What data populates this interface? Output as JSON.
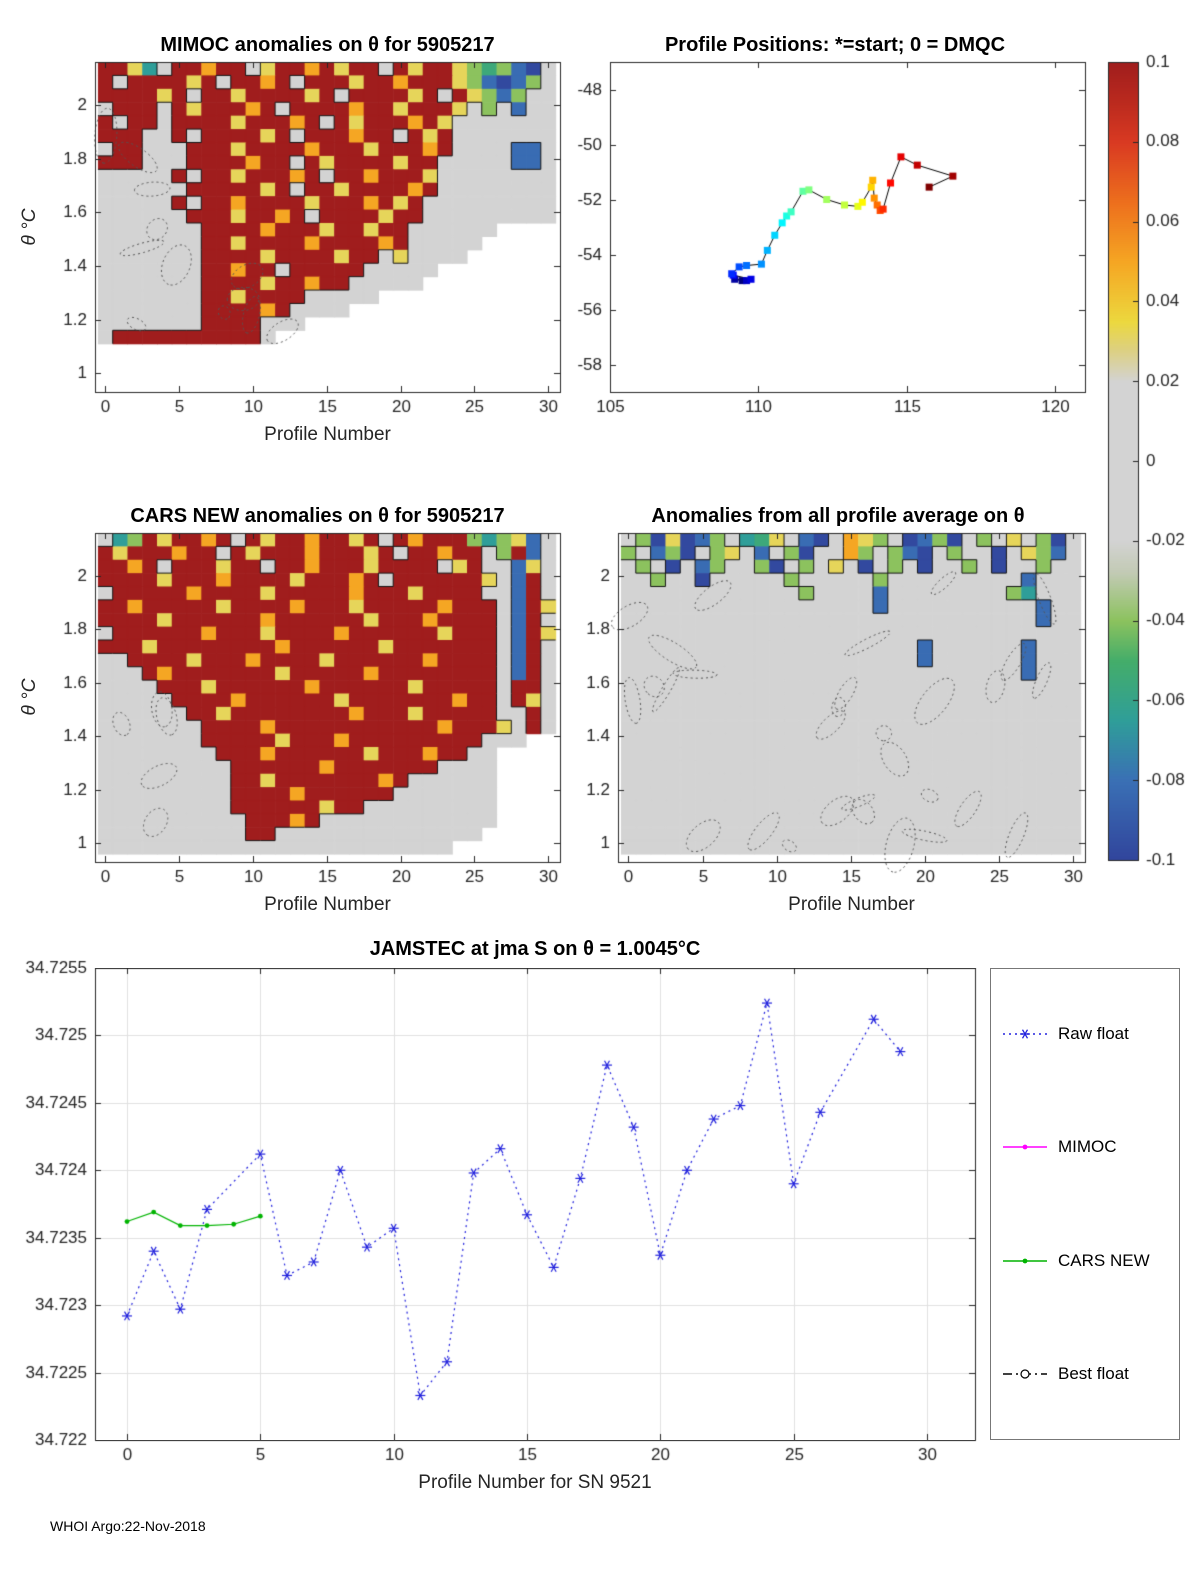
{
  "page": {
    "footer": "WHOI Argo:22-Nov-2018",
    "background": "#ffffff"
  },
  "colormap": {
    "range": [
      -0.1,
      0.1
    ],
    "ticks": [
      0.1,
      0.08,
      0.06,
      0.04,
      0.02,
      0,
      -0.02,
      -0.04,
      -0.06,
      -0.08,
      -0.1
    ],
    "stops": [
      [
        0.0,
        "#31459c"
      ],
      [
        0.1,
        "#3a70b5"
      ],
      [
        0.175,
        "#2f9e99"
      ],
      [
        0.25,
        "#44ad6a"
      ],
      [
        0.3,
        "#8cc25e"
      ],
      [
        0.36,
        "#c2cab4"
      ],
      [
        0.4,
        "#d3d3d3"
      ],
      [
        0.6,
        "#d3d3d3"
      ],
      [
        0.64,
        "#ddd080"
      ],
      [
        0.675,
        "#ecd83e"
      ],
      [
        0.75,
        "#f5a623"
      ],
      [
        0.825,
        "#ed6f1d"
      ],
      [
        0.9,
        "#d93a22"
      ],
      [
        0.95,
        "#bb2a1e"
      ],
      [
        1.0,
        "#a01d1d"
      ]
    ]
  },
  "chart_data": [
    {
      "id": "mimoc_heatmap",
      "type": "heatmap",
      "title": "MIMOC anomalies on θ  for 5905217",
      "xlabel": "Profile Number",
      "ylabel": "θ  °C",
      "xlim": [
        -0.7,
        30.8
      ],
      "ylim": [
        0.93,
        2.16
      ],
      "xticks": [
        0,
        5,
        10,
        15,
        20,
        25,
        30
      ],
      "yticks": [
        1,
        1.2,
        1.4,
        1.6,
        1.8,
        2
      ],
      "y_top": 2.16,
      "y_step": 0.05,
      "value_map": {
        " ": null,
        "0": 0,
        "y": 0.032,
        "o": 0.05,
        "r": 0.08,
        "R": 0.1,
        "g": -0.04,
        "G": -0.055,
        "c": -0.065,
        "b": -0.082,
        "B": -0.098
      },
      "grid": [
        "RRyc0RRoRR0yRRoRyRR0RyRRygGgbB0",
        "R0RRRRyR0RRoR0RRRyRRoRRRygbBbg0",
        "RRRRyR0RRyRRRRyR0RRRRyR0Rygbg00",
        "0RRR0RyRRRoR0RRRRoRRyRRRy0g0b00",
        "R0RR0RRRRyRRRoR0RyRRRoRy0000000",
        "RRR00R0RRRRyR0RRRoRR0RyR0000000",
        "0RR000RRRyRRRRoRRRyRRRoR0000bb0",
        "RRR000RRRRoRR0RyRRRRyRR00000bb0",
        "00000R0RRyRRRoR0RRoRRRy00000000",
        "000000RRRRRyR0RRyRRRRoR00000000",
        "00000R0RRoRRRRyRRRoRyR000000000",
        "000000RRRyRRoR0RRRRyRR000000000",
        "0000000RRRRoRRRyRRyRR000000",
        "0000000RRyRRRRoRRRRoR00000",
        "0000000RRRRyRRRRyRR0y0000",
        "0000000RRoRR0RRRRR00000",
        "0000000RRRRyRRoRR00000",
        "0000000RRyRRRR00000",
        "0000000RRRRoR0000",
        "0000000RRRR000",
        "0RRRRRRRRRR0",
        "",
        "",
        ""
      ]
    },
    {
      "id": "profile_positions",
      "type": "trajectory",
      "title": "Profile Positions: *=start; 0 = DMQC",
      "xlim": [
        105,
        121
      ],
      "ylim": [
        -59,
        -47
      ],
      "xticks": [
        105,
        110,
        115,
        120
      ],
      "yticks": [
        -58,
        -56,
        -54,
        -52,
        -50,
        -48
      ],
      "lon": [
        109.45,
        109.2,
        109.6,
        109.75,
        109.15,
        109.1,
        109.35,
        109.6,
        110.1,
        110.3,
        110.55,
        110.8,
        110.95,
        111.1,
        111.5,
        111.7,
        112.3,
        112.9,
        113.35,
        113.5,
        113.8,
        113.85,
        113.9,
        114.0,
        114.1,
        114.2,
        114.45,
        114.8,
        115.35,
        116.55,
        115.75
      ],
      "lat": [
        -54.95,
        -54.9,
        -54.95,
        -54.9,
        -54.75,
        -54.7,
        -54.45,
        -54.4,
        -54.35,
        -53.85,
        -53.3,
        -52.85,
        -52.6,
        -52.45,
        -51.7,
        -51.65,
        -52.0,
        -52.2,
        -52.25,
        -52.1,
        -51.55,
        -51.3,
        -51.95,
        -52.2,
        -52.4,
        -52.35,
        -51.4,
        -50.45,
        -50.75,
        -51.15,
        -51.55
      ]
    },
    {
      "id": "cars_heatmap",
      "type": "heatmap",
      "title": "CARS NEW anomalies on θ for 5905217",
      "xlabel": "Profile Number",
      "ylabel": "θ  °C",
      "xlim": [
        -0.7,
        30.8
      ],
      "ylim": [
        0.93,
        2.16
      ],
      "xticks": [
        0,
        5,
        10,
        15,
        20,
        25,
        30
      ],
      "yticks": [
        1,
        1.2,
        1.4,
        1.6,
        1.8,
        2
      ],
      "y_top": 2.16,
      "y_step": 0.05,
      "value_map": {
        " ": null,
        "0": 0,
        "y": 0.032,
        "o": 0.05,
        "r": 0.08,
        "R": 0.1,
        "g": -0.04,
        "G": -0.055,
        "c": -0.065,
        "b": -0.082,
        "B": -0.098
      },
      "grid": [
        "0cgRyRRoR0RyRRoRRyR0RoRRRgcgyb0",
        "RyRRRoRR0RyRRRoRRRyR0RRoRR0gRb0",
        "RRoR0RRRyRR0RRoRRRyRRRR0yR00by0",
        "RRRRyRRRoRRRRyRRRoR0RRRRRRy0bR0",
        "0RRRRRoRRRRyRRRRRoRRRyRRRR00bR0",
        "RRoRRRRRyRRRRoRRRyRRRRRoRRR0bRy",
        "RRRRyRRRRRRoRRRRRRyRRRoRRRR0bR0",
        "0RRRRRRoRRRyRRRRoRRRRRRyRRR0bRy",
        "RRRyRRRRRRRRoRRRRRRyRRRRRRR0bR0",
        "00RRRRyRRRoRRRRyRRRRRRoRRRR0bR0",
        "000RoRRRRRRRyRRRRRoRRRRRRRR0bR0",
        "0000RRRyRRRRRRoRRRRRRyRRRRR0RR0",
        "00000RRRRoRRRRRRyRRRRRRRoRR0Ry0",
        "000000RRyRRRRRRRRoRRRyRRRRR00R0",
        "0000000RRRRoRRRRRRRRRRRoRRRy0R0",
        "0000000RRRRRyRRRoRRRRRRRRR000",
        "00000000RRRoRRRRRRyRRRoRR00",
        "000000000RRRRRRoRRRRRRR0000",
        "000000000RRyRRRRRRRoR000000",
        "000000000RRRRoRRRRRR0000000",
        "000000000RRRRRRyRR000000000",
        "0000000000RRRoR000000000000",
        "0000000000RR00000000000000",
        "000000000000000000000000"
      ]
    },
    {
      "id": "avg_heatmap",
      "type": "heatmap",
      "title": "Anomalies from all profile average on θ",
      "xlabel": "Profile Number",
      "ylabel": "",
      "xlim": [
        -0.7,
        30.8
      ],
      "ylim": [
        0.93,
        2.16
      ],
      "xticks": [
        0,
        5,
        10,
        15,
        20,
        25,
        30
      ],
      "yticks": [
        1,
        1.2,
        1.4,
        1.6,
        1.8,
        2
      ],
      "y_top": 2.16,
      "y_step": 0.05,
      "value_map": {
        " ": null,
        "0": 0,
        "y": 0.032,
        "o": 0.05,
        "r": 0.08,
        "R": 0.1,
        "g": -0.04,
        "G": -0.055,
        "c": -0.065,
        "b": -0.082,
        "B": -0.098
      },
      "grid": [
        "0gByBbg0cGy0bB0oyg0BbgB0g0y0gB0",
        "g0bgB0gy0b0gB00og0gbB0g00B0ygb0",
        "0g0B0bg00gB0g0y0B0g0B00g0B00g00",
        "00g00B00000g00000g000000000b000",
        "000000000000g0000b00000000gc000",
        "00000000000000000b0000000000b00",
        "0000000000000000000000000000b00",
        "0000000000000000000000000000000",
        "00000000000000000000b000000b000",
        "00000000000000000000b000000b000",
        "000000000000000000000000000b000",
        "0000000000000000000000000000000",
        "0000000000000000000000000000000",
        "0000000000000000000000000000000",
        "0000000000000000000000000000000",
        "0000000000000000000000000000000",
        "0000000000000000000000000000000",
        "0000000000000000000000000000000",
        "0000000000000000000000000000000",
        "0000000000000000000000000000000",
        "0000000000000000000000000000000",
        "0000000000000000000000000000000",
        "0000000000000000000000000000000",
        "0000000000000000000000000000000"
      ]
    },
    {
      "id": "jamstec_salinity",
      "type": "line",
      "title": "JAMSTEC at jma S on θ = 1.0045°C",
      "xlabel": "Profile Number for SN 9521",
      "xlim": [
        -1.2,
        31.8
      ],
      "ylim": [
        34.722,
        34.7255
      ],
      "xticks": [
        0,
        5,
        10,
        15,
        20,
        25,
        30
      ],
      "yticks": [
        34.722,
        34.7225,
        34.723,
        34.7235,
        34.724,
        34.7245,
        34.725,
        34.7255
      ],
      "ytick_labels": [
        "34.722",
        "34.7225",
        "34.723",
        "34.7235",
        "34.724",
        "34.7245",
        "34.725",
        "34.7255"
      ],
      "grid": true,
      "series": [
        {
          "name": "Raw float",
          "color": "#2222dd",
          "line": "dotted",
          "marker": "asterisk",
          "x": [
            0,
            1,
            2,
            3,
            5,
            6,
            7,
            8,
            9,
            10,
            11,
            12,
            13,
            14,
            15,
            16,
            17,
            18,
            19,
            20,
            21,
            22,
            23,
            24,
            25,
            26,
            28,
            29
          ],
          "y": [
            34.72292,
            34.7234,
            34.72297,
            34.72371,
            34.72412,
            34.72322,
            34.72332,
            34.724,
            34.72343,
            34.72357,
            34.72233,
            34.72258,
            34.72398,
            34.72416,
            34.72367,
            34.72328,
            34.72394,
            34.72478,
            34.72432,
            34.72337,
            34.724,
            34.72438,
            34.72448,
            34.72524,
            34.7239,
            34.72443,
            34.72512,
            34.72488
          ]
        },
        {
          "name": "MIMOC",
          "color": "#ff00ff",
          "line": "solid",
          "marker": "dot",
          "x": [],
          "y": []
        },
        {
          "name": "CARS NEW",
          "color": "#00b400",
          "line": "solid",
          "marker": "dot",
          "x": [
            0,
            1,
            2,
            3,
            4,
            5
          ],
          "y": [
            34.72362,
            34.72369,
            34.72359,
            34.72359,
            34.7236,
            34.72366
          ]
        },
        {
          "name": "Best float",
          "color": "#000000",
          "line": "dashdot",
          "marker": "circle",
          "x": [],
          "y": []
        }
      ]
    }
  ]
}
